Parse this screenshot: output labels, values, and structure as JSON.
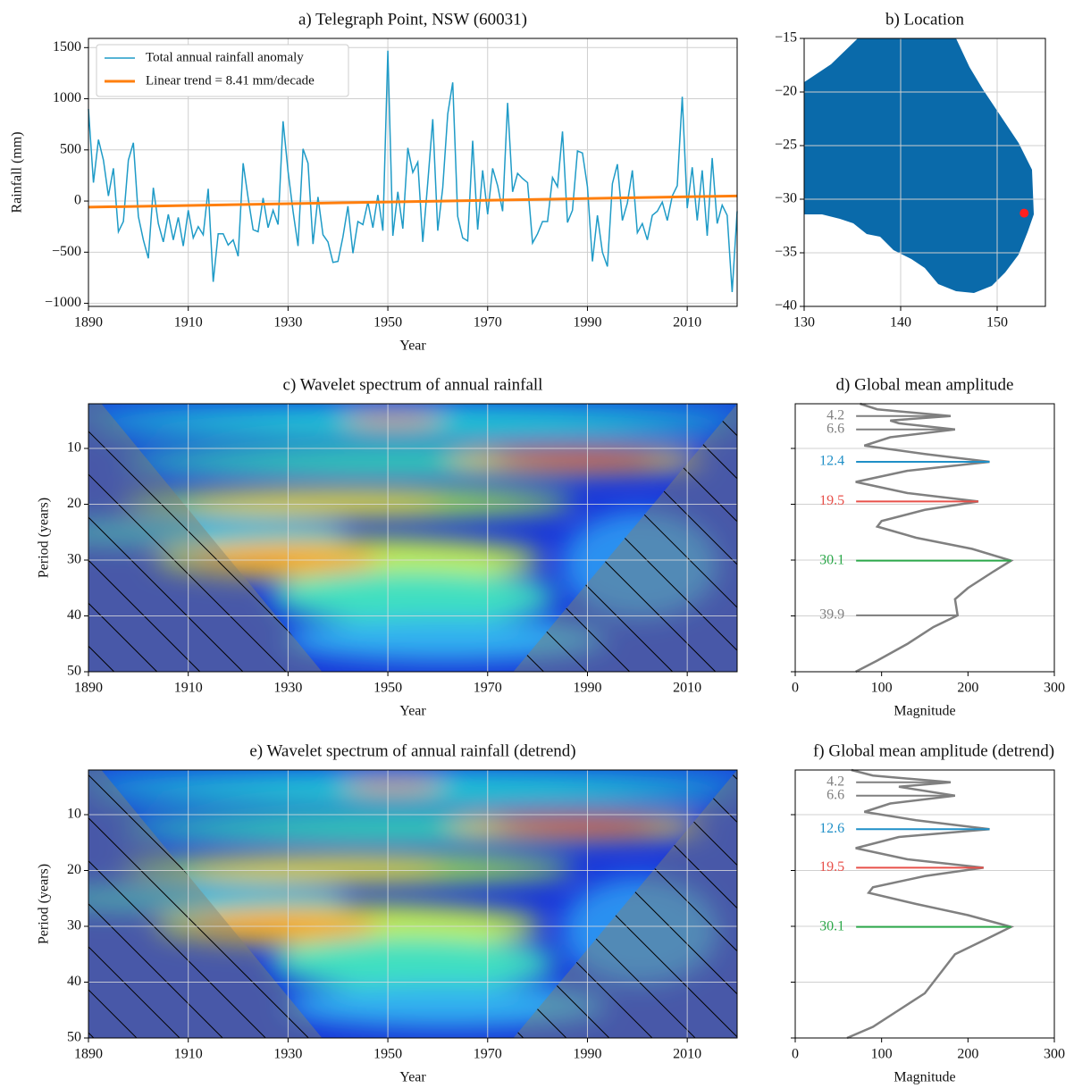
{
  "chart_data": [
    {
      "type": "line",
      "title": "a) Telegraph Point, NSW (60031)",
      "x_label": "Year",
      "y_label": "Rainfall (mm)",
      "xlim": [
        1890,
        2020
      ],
      "ylim": [
        -1030,
        1590
      ],
      "xticks": [
        1890,
        1910,
        1930,
        1950,
        1970,
        1990,
        2010
      ],
      "yticks": [
        {
          "value": -1000,
          "label": "−1000"
        },
        {
          "value": -500,
          "label": "−500"
        },
        0,
        500,
        1000,
        1500
      ],
      "grid": true,
      "legend": "upper left",
      "series": [
        {
          "name": "Total annual rainfall anomaly",
          "color": "#1f9bc7",
          "x": [
            1890,
            1891,
            1892,
            1893,
            1894,
            1895,
            1896,
            1897,
            1898,
            1899,
            1900,
            1901,
            1902,
            1903,
            1904,
            1905,
            1906,
            1907,
            1908,
            1909,
            1910,
            1911,
            1912,
            1913,
            1914,
            1915,
            1916,
            1917,
            1918,
            1919,
            1920,
            1921,
            1922,
            1923,
            1924,
            1925,
            1926,
            1927,
            1928,
            1929,
            1930,
            1931,
            1932,
            1933,
            1934,
            1935,
            1936,
            1937,
            1938,
            1939,
            1940,
            1941,
            1942,
            1943,
            1944,
            1945,
            1946,
            1947,
            1948,
            1949,
            1950,
            1951,
            1952,
            1953,
            1954,
            1955,
            1956,
            1957,
            1958,
            1959,
            1960,
            1961,
            1962,
            1963,
            1964,
            1965,
            1966,
            1967,
            1968,
            1969,
            1970,
            1971,
            1972,
            1973,
            1974,
            1975,
            1976,
            1977,
            1978,
            1979,
            1980,
            1981,
            1982,
            1983,
            1984,
            1985,
            1986,
            1987,
            1988,
            1989,
            1990,
            1991,
            1992,
            1993,
            1994,
            1995,
            1996,
            1997,
            1998,
            1999,
            2000,
            2001,
            2002,
            2003,
            2004,
            2005,
            2006,
            2007,
            2008,
            2009,
            2010,
            2011,
            2012,
            2013,
            2014,
            2015,
            2016,
            2017,
            2018,
            2019,
            2020
          ],
          "values": [
            900,
            180,
            600,
            400,
            50,
            320,
            -300,
            -200,
            400,
            570,
            -150,
            -380,
            -560,
            130,
            -220,
            -400,
            -130,
            -380,
            -160,
            -440,
            -90,
            -360,
            -250,
            -330,
            120,
            -790,
            -320,
            -320,
            -430,
            -380,
            -540,
            370,
            30,
            -280,
            -300,
            30,
            -260,
            -90,
            -230,
            780,
            290,
            -100,
            -440,
            510,
            370,
            -420,
            40,
            -330,
            -400,
            -600,
            -590,
            -350,
            -50,
            -510,
            -200,
            -230,
            -10,
            -260,
            60,
            -290,
            1470,
            -340,
            90,
            -270,
            520,
            280,
            380,
            -400,
            180,
            800,
            -290,
            130,
            850,
            1160,
            -150,
            -360,
            -390,
            590,
            -280,
            300,
            -130,
            320,
            150,
            -100,
            960,
            90,
            270,
            220,
            180,
            -410,
            -320,
            -200,
            -200,
            230,
            140,
            680,
            -210,
            -90,
            490,
            470,
            140,
            -590,
            -140,
            -500,
            -640,
            170,
            360,
            -190,
            -20,
            300,
            -310,
            -220,
            -380,
            -140,
            -100,
            -10,
            -190,
            50,
            150,
            1020,
            -70,
            330,
            -190,
            300,
            -340,
            420,
            -220,
            -40,
            -140,
            -890,
            -100
          ]
        },
        {
          "name": "Linear trend = 8.41 mm/decade",
          "color": "#ff7f0e",
          "x": [
            1890,
            2020
          ],
          "values": [
            -60,
            50
          ]
        }
      ]
    },
    {
      "type": "map",
      "title": "b) Location",
      "xlim": [
        130,
        155
      ],
      "ylim": [
        -40,
        -15
      ],
      "xticks": [
        130,
        140,
        150
      ],
      "yticks": [
        {
          "value": -40,
          "label": "−40"
        },
        {
          "value": -35,
          "label": "−35"
        },
        {
          "value": -30,
          "label": "−30"
        },
        {
          "value": -25,
          "label": "−25"
        },
        {
          "value": -20,
          "label": "−20"
        },
        {
          "value": -15,
          "label": "−15"
        }
      ],
      "grid": true,
      "land_color": "#0a6aaa",
      "points": {
        "x": [
          152.8
        ],
        "y": [
          -31.3
        ],
        "color": "#ff2020"
      }
    },
    {
      "type": "heatmap",
      "title": "c) Wavelet spectrum of annual rainfall",
      "x_label": "Year",
      "y_label": "Period (years)",
      "xlim": [
        1890,
        2020
      ],
      "ylim": [
        50,
        2
      ],
      "xticks": [
        1890,
        1910,
        1930,
        1950,
        1970,
        1990,
        2010
      ],
      "yticks": [
        10,
        20,
        30,
        40,
        50
      ],
      "colormap": "jet",
      "grid": true
    },
    {
      "type": "amplitude",
      "title": "d) Global mean amplitude",
      "x_label": "Magnitude",
      "xlim": [
        0,
        300
      ],
      "ylim": [
        50,
        2
      ],
      "xticks": [
        0,
        100,
        200,
        300
      ],
      "ygrid": [
        10,
        20,
        30,
        40,
        50
      ],
      "color": "#808080",
      "periods": [
        2,
        3,
        4.2,
        5,
        5.5,
        6.6,
        8,
        9.5,
        11,
        12.4,
        14,
        16,
        18,
        19.5,
        21,
        23,
        24,
        26,
        28,
        30.1,
        32,
        35,
        37,
        39.9,
        42,
        45,
        48,
        50
      ],
      "values": [
        75,
        95,
        180,
        110,
        120,
        185,
        110,
        80,
        150,
        225,
        130,
        70,
        130,
        212,
        150,
        100,
        95,
        140,
        205,
        250,
        230,
        200,
        185,
        188,
        160,
        130,
        95,
        70
      ],
      "peaks": [
        {
          "period": 4.2,
          "color": "#7f7f7f"
        },
        {
          "period": 6.6,
          "color": "#7f7f7f"
        },
        {
          "period": 12.4,
          "color": "#1f8fc7"
        },
        {
          "period": 19.5,
          "color": "#e8504a"
        },
        {
          "period": 30.1,
          "color": "#2ca84a"
        },
        {
          "period": 39.9,
          "color": "#7f7f7f"
        }
      ]
    },
    {
      "type": "heatmap",
      "title": "e) Wavelet spectrum of annual rainfall (detrend)",
      "x_label": "Year",
      "y_label": "Period (years)",
      "xlim": [
        1890,
        2020
      ],
      "ylim": [
        50,
        2
      ],
      "xticks": [
        1890,
        1910,
        1930,
        1950,
        1970,
        1990,
        2010
      ],
      "yticks": [
        10,
        20,
        30,
        40,
        50
      ],
      "colormap": "jet",
      "grid": true
    },
    {
      "type": "amplitude",
      "title": "f) Global mean amplitude (detrend)",
      "x_label": "Magnitude",
      "xlim": [
        0,
        300
      ],
      "ylim": [
        50,
        2
      ],
      "xticks": [
        0,
        100,
        200,
        300
      ],
      "ygrid": [
        10,
        20,
        30,
        40,
        50
      ],
      "color": "#808080",
      "periods": [
        2,
        3,
        4.2,
        5,
        6.6,
        8,
        9.5,
        11,
        12.6,
        14,
        16,
        18,
        19.5,
        21,
        23,
        24,
        26,
        28,
        30.1,
        32,
        35,
        38,
        42,
        45,
        48,
        50
      ],
      "values": [
        65,
        90,
        180,
        120,
        185,
        110,
        80,
        140,
        225,
        120,
        70,
        130,
        218,
        150,
        90,
        85,
        140,
        200,
        250,
        225,
        185,
        170,
        150,
        120,
        90,
        60
      ],
      "peaks": [
        {
          "period": 4.2,
          "color": "#7f7f7f"
        },
        {
          "period": 6.6,
          "color": "#7f7f7f"
        },
        {
          "period": 12.6,
          "color": "#1f8fc7"
        },
        {
          "period": 19.5,
          "color": "#e8504a"
        },
        {
          "period": 30.1,
          "color": "#2ca84a"
        }
      ]
    }
  ]
}
